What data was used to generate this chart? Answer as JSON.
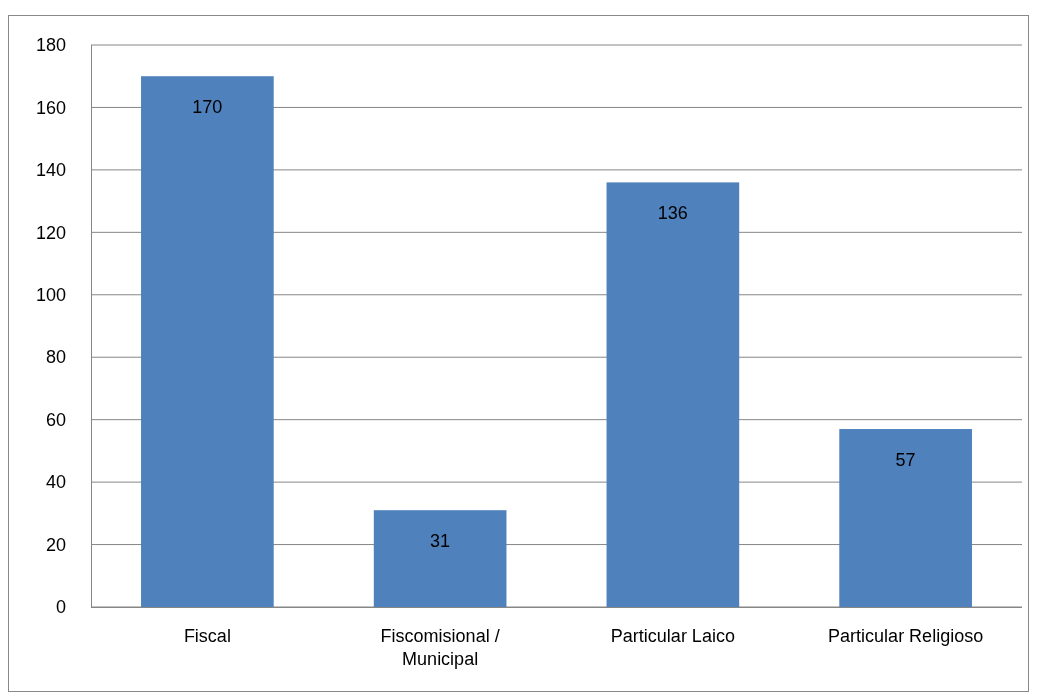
{
  "chart_data": {
    "type": "bar",
    "categories": [
      "Fiscal",
      "Fiscomisional / Municipal",
      "Particular Laico",
      "Particular Religioso"
    ],
    "values": [
      170,
      31,
      136,
      57
    ],
    "color": "#4f81bd",
    "ylim": [
      0,
      180
    ],
    "yticks": [
      0,
      20,
      40,
      60,
      80,
      100,
      120,
      140,
      160,
      180
    ],
    "grid": "y",
    "data_labels": true
  }
}
